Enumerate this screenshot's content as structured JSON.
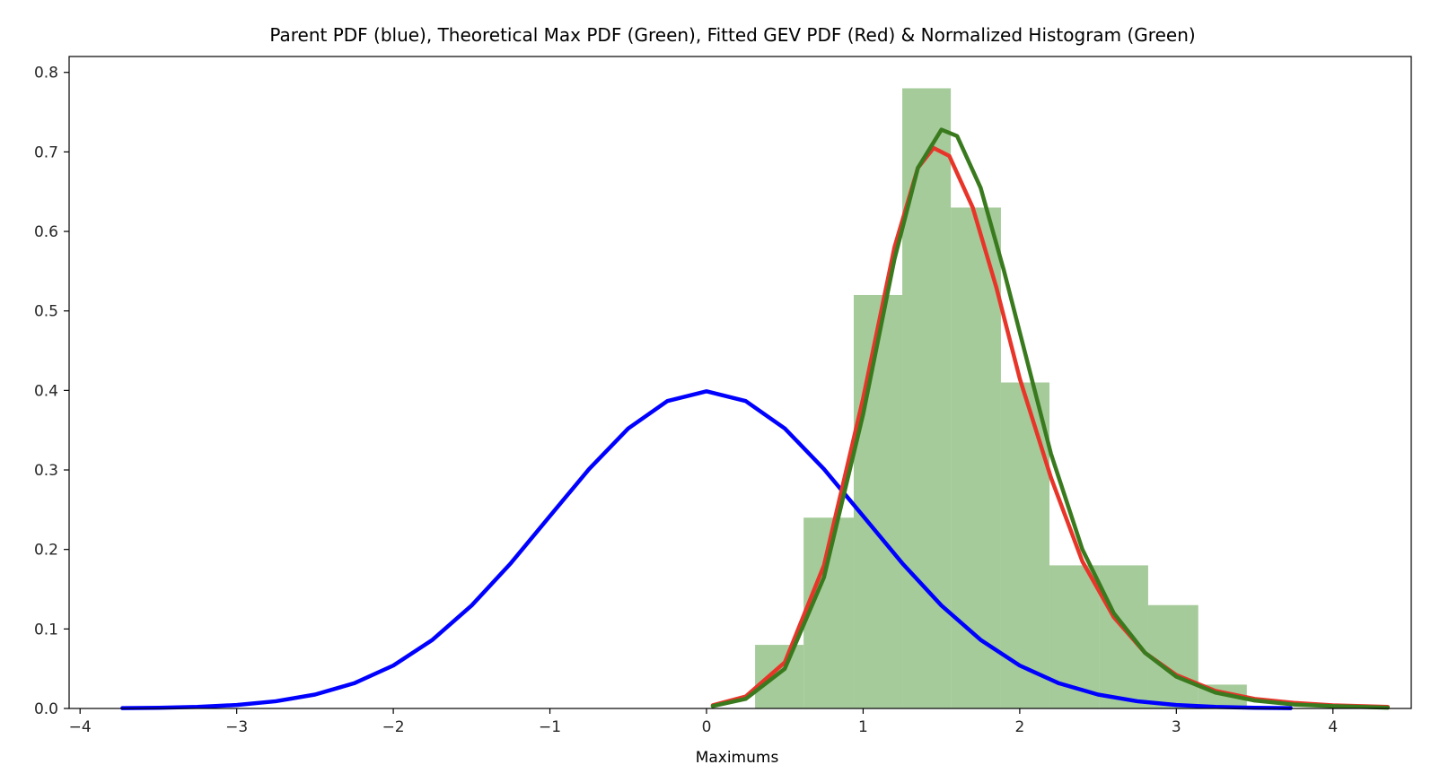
{
  "chart_data": {
    "type": "line",
    "title": "Parent PDF (blue), Theoretical Max PDF (Green), Fitted GEV PDF (Red) & Normalized Histogram (Green)",
    "xlabel": "Maximums",
    "ylabel": "",
    "xlim": [
      -4.07,
      4.5
    ],
    "ylim": [
      0,
      0.82
    ],
    "x_ticks": [
      -4,
      -3,
      -2,
      -1,
      0,
      1,
      2,
      3,
      4
    ],
    "x_tick_labels": [
      "−4",
      "−3",
      "−2",
      "−1",
      "0",
      "1",
      "2",
      "3",
      "4"
    ],
    "y_ticks": [
      0.0,
      0.1,
      0.2,
      0.3,
      0.4,
      0.5,
      0.6,
      0.7,
      0.8
    ],
    "y_tick_labels": [
      "0.0",
      "0.1",
      "0.2",
      "0.3",
      "0.4",
      "0.5",
      "0.6",
      "0.7",
      "0.8"
    ],
    "grid": false,
    "histogram": {
      "color": "#7fb56f",
      "bin_edges": [
        0.31,
        0.62,
        0.94,
        1.25,
        1.56,
        1.88,
        2.19,
        2.51,
        2.82,
        3.14,
        3.45
      ],
      "values": [
        0.08,
        0.24,
        0.52,
        0.78,
        0.63,
        0.41,
        0.18,
        0.18,
        0.13,
        0.03
      ]
    },
    "series": [
      {
        "color": "#0000ff",
        "x": [
          -3.73,
          -3.5,
          -3.25,
          -3.0,
          -2.75,
          -2.5,
          -2.25,
          -2.0,
          -1.75,
          -1.5,
          -1.25,
          -1.0,
          -0.75,
          -0.5,
          -0.25,
          0.0,
          0.25,
          0.5,
          0.75,
          1.0,
          1.25,
          1.5,
          1.75,
          2.0,
          2.25,
          2.5,
          2.75,
          3.0,
          3.25,
          3.5,
          3.73
        ],
        "y": [
          0.0004,
          0.0009,
          0.002,
          0.0044,
          0.0091,
          0.0175,
          0.0317,
          0.054,
          0.0863,
          0.1295,
          0.1826,
          0.242,
          0.3011,
          0.3521,
          0.3867,
          0.3989,
          0.3867,
          0.3521,
          0.3011,
          0.242,
          0.1826,
          0.1295,
          0.0863,
          0.054,
          0.0317,
          0.0175,
          0.0091,
          0.0044,
          0.002,
          0.0009,
          0.0004
        ]
      },
      {
        "color": "#e8352a",
        "x": [
          0.04,
          0.25,
          0.5,
          0.75,
          1.0,
          1.2,
          1.35,
          1.45,
          1.55,
          1.7,
          1.85,
          2.0,
          2.2,
          2.4,
          2.6,
          2.8,
          3.0,
          3.25,
          3.5,
          3.75,
          4.0,
          4.35
        ],
        "y": [
          0.004,
          0.015,
          0.058,
          0.18,
          0.39,
          0.58,
          0.68,
          0.705,
          0.695,
          0.63,
          0.53,
          0.415,
          0.29,
          0.185,
          0.115,
          0.07,
          0.042,
          0.022,
          0.012,
          0.007,
          0.004,
          0.002
        ]
      },
      {
        "color": "#3a7a1e",
        "x": [
          0.04,
          0.25,
          0.5,
          0.75,
          1.0,
          1.2,
          1.35,
          1.5,
          1.6,
          1.75,
          1.9,
          2.05,
          2.2,
          2.4,
          2.6,
          2.8,
          3.0,
          3.25,
          3.5,
          3.75,
          4.0,
          4.35
        ],
        "y": [
          0.003,
          0.012,
          0.05,
          0.165,
          0.37,
          0.565,
          0.68,
          0.728,
          0.72,
          0.655,
          0.55,
          0.435,
          0.32,
          0.2,
          0.12,
          0.07,
          0.04,
          0.02,
          0.01,
          0.005,
          0.003,
          0.001
        ]
      }
    ]
  }
}
